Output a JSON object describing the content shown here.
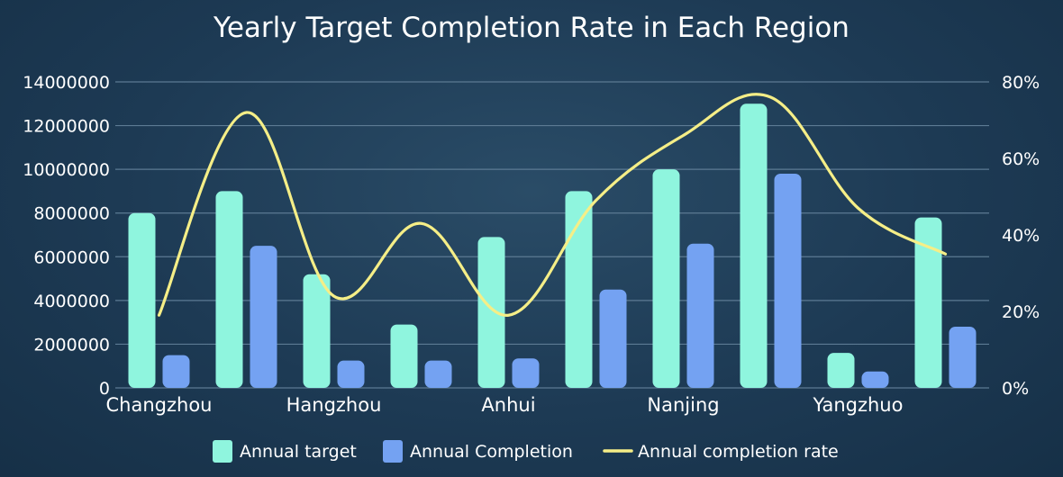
{
  "chart_data": {
    "type": "bar",
    "title": "Yearly Target Completion Rate in Each Region",
    "categories": [
      "Changzhou",
      "",
      "Hangzhou",
      "",
      "Anhui",
      "",
      "Nanjing",
      "",
      "Yangzhuo",
      ""
    ],
    "x_tick_labels": [
      "Changzhou",
      "Hangzhou",
      "Anhui",
      "Nanjing",
      "Yangzhuo"
    ],
    "series": [
      {
        "name": "Annual target",
        "type": "bar",
        "axis": "left",
        "color": "#8ff5de",
        "values": [
          8000000,
          9000000,
          5200000,
          2900000,
          6900000,
          9000000,
          10000000,
          13000000,
          1600000,
          7800000
        ]
      },
      {
        "name": "Annual Completion",
        "type": "bar",
        "axis": "left",
        "color": "#74a2f2",
        "values": [
          1500000,
          6500000,
          1250000,
          1250000,
          1350000,
          4500000,
          6600000,
          9800000,
          750000,
          2800000
        ]
      },
      {
        "name": "Annual completion rate",
        "type": "line",
        "axis": "right",
        "color": "#f5ee87",
        "smooth": true,
        "values": [
          19,
          72,
          24,
          43,
          19,
          49,
          66,
          76,
          47,
          35
        ]
      }
    ],
    "y_left": {
      "min": 0,
      "max": 14000000,
      "ticks": [
        "0",
        "2000000",
        "4000000",
        "6000000",
        "8000000",
        "10000000",
        "12000000",
        "14000000"
      ]
    },
    "y_right": {
      "min": 0,
      "max": 80,
      "ticks": [
        "0%",
        "20%",
        "40%",
        "60%",
        "80%"
      ]
    },
    "grid": true,
    "legend_position": "bottom-center"
  }
}
